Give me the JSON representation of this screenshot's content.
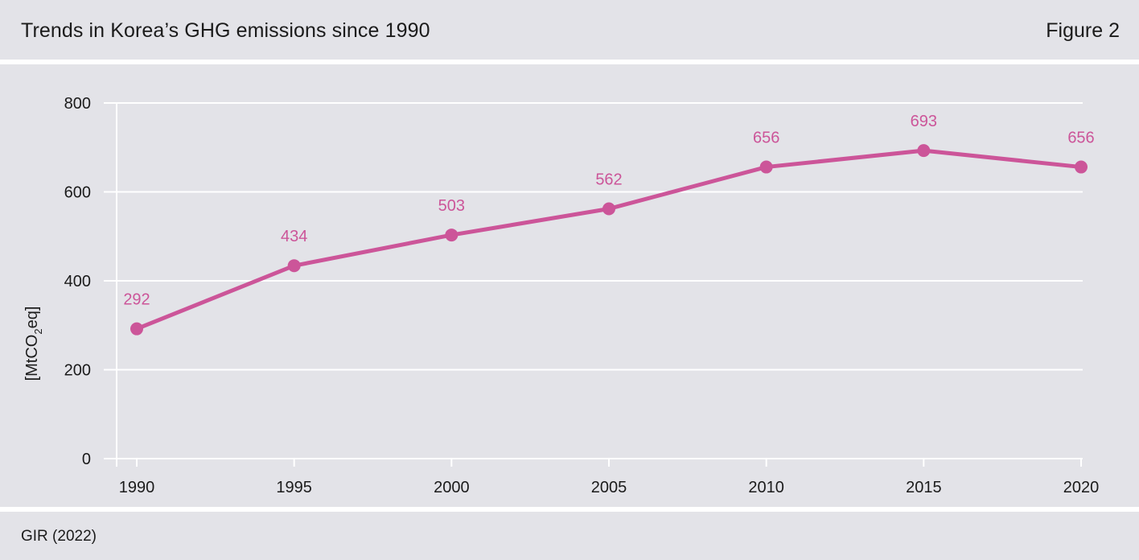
{
  "header": {
    "title": "Trends in Korea’s GHG emissions since 1990",
    "figure_label": "Figure 2"
  },
  "footer": {
    "source": "GIR (2022)"
  },
  "colors": {
    "panel_bg": "#e3e3e8",
    "line": "#cc5599",
    "grid": "#ffffff"
  },
  "chart_data": {
    "type": "line",
    "title": "Trends in Korea’s GHG emissions since 1990",
    "xlabel": "",
    "ylabel": "[MtCO₂eq]",
    "ylabel_parts": {
      "pre": "[MtCO",
      "sub": "2",
      "post": "eq]"
    },
    "x": [
      1990,
      1995,
      2000,
      2005,
      2010,
      2015,
      2020
    ],
    "x_tick_labels": [
      "1990",
      "1995",
      "2000",
      "2005",
      "2010",
      "2015",
      "2020"
    ],
    "y_ticks": [
      0,
      200,
      400,
      600,
      800
    ],
    "y_tick_labels": [
      "0",
      "200",
      "400",
      "600",
      "800"
    ],
    "ylim": [
      0,
      800
    ],
    "grid": true,
    "series": [
      {
        "values": [
          292,
          434,
          503,
          562,
          656,
          693,
          656
        ],
        "data_labels": [
          "292",
          "434",
          "503",
          "562",
          "656",
          "693",
          "656"
        ]
      }
    ]
  }
}
